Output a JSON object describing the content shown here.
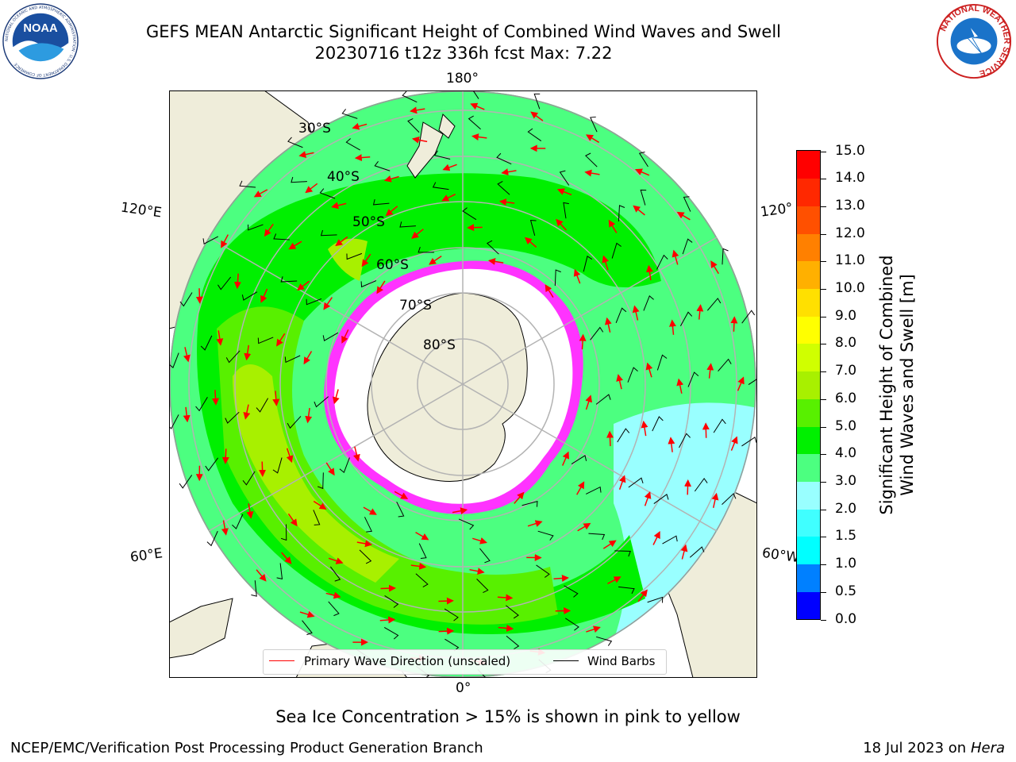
{
  "title": {
    "line1": "GEFS MEAN Antarctic Significant Height of Combined Wind Waves and Swell",
    "line2": "20230716 t12z 336h fcst   Max: 7.22"
  },
  "logos": {
    "noaa": {
      "text": "NOAA",
      "ring_text": "NATIONAL OCEANIC AND ATMOSPHERIC ADMINISTRATION · U.S. DEPARTMENT OF COMMERCE"
    },
    "nws": {
      "ring_text": "NATIONAL WEATHER SERVICE"
    }
  },
  "map": {
    "longitude_labels": {
      "top": "180°",
      "bottom": "0°",
      "left_upper": "120°E",
      "left_lower": "60°E",
      "right_upper": "120°",
      "right_lower": "60°W"
    },
    "latitude_labels": [
      "30°S",
      "40°S",
      "50°S",
      "60°S",
      "70°S",
      "80°S"
    ],
    "colors": {
      "land": "#efedda",
      "ice": "#ffffff",
      "ice_edge": "#ff33ff",
      "wave_direction": "#ff0000",
      "wind_barb": "#000000",
      "graticule": "#b3b3b3"
    }
  },
  "legend": {
    "primary_wave": "Primary Wave Direction (unscaled)",
    "wind_barbs": "Wind Barbs"
  },
  "colorbar": {
    "label_line1": "Significant Height of Combined",
    "label_line2": "Wind Waves and Swell [m]",
    "ticks": [
      "0.0",
      "0.5",
      "1.0",
      "1.5",
      "2.0",
      "3.0",
      "4.0",
      "5.0",
      "6.0",
      "7.0",
      "8.0",
      "9.0",
      "10.0",
      "11.0",
      "12.0",
      "13.0",
      "14.0",
      "15.0"
    ],
    "colors": [
      "#0000ff",
      "#0080ff",
      "#00ffff",
      "#40ffff",
      "#99ffff",
      "#4cff80",
      "#00f000",
      "#58f000",
      "#a8f000",
      "#d0ff00",
      "#ffff00",
      "#ffe000",
      "#ffb000",
      "#ff8000",
      "#ff5000",
      "#ff2800",
      "#ff0000"
    ]
  },
  "annotation": "Sea Ice Concentration > 15% is shown in pink to yellow",
  "footer": {
    "left": "NCEP/EMC/Verification Post Processing Product Generation Branch",
    "right_prefix": "18 Jul 2023 on ",
    "right_host": "Hera"
  }
}
